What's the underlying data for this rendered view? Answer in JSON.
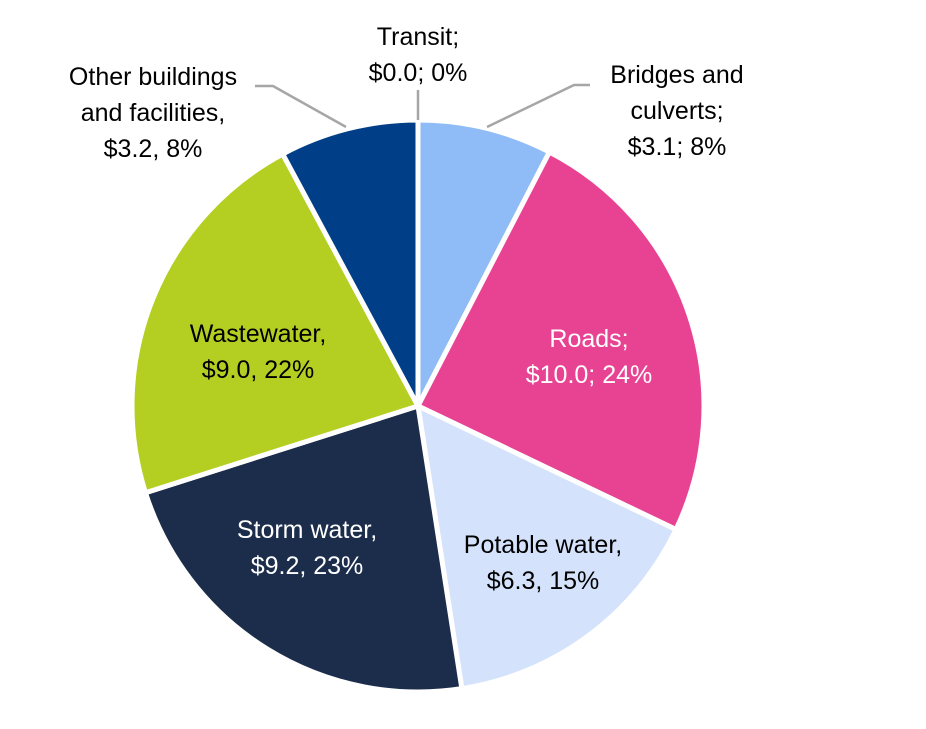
{
  "chart_data": {
    "type": "pie",
    "title": "",
    "unit_prefix": "$",
    "slices": [
      {
        "category": "Transit",
        "value": 0.0,
        "percent": 0,
        "color": "#2a9fd6",
        "label_lines": [
          "Transit;",
          "$0.0; 0%"
        ],
        "label_color": "#000000"
      },
      {
        "category": "Bridges and culverts",
        "value": 3.1,
        "percent": 8,
        "color": "#8fbcf6",
        "label_lines": [
          "Bridges and",
          "culverts;",
          "$3.1; 8%"
        ],
        "label_color": "#000000"
      },
      {
        "category": "Roads",
        "value": 10.0,
        "percent": 24,
        "color": "#e84393",
        "label_lines": [
          "Roads;",
          "$10.0; 24%"
        ],
        "label_color": "#ffffff"
      },
      {
        "category": "Potable water",
        "value": 6.3,
        "percent": 15,
        "color": "#d4e3fb",
        "label_lines": [
          "Potable water,",
          "$6.3, 15%"
        ],
        "label_color": "#000000"
      },
      {
        "category": "Storm water",
        "value": 9.2,
        "percent": 23,
        "color": "#1c2d4c",
        "label_lines": [
          "Storm water,",
          "$9.2, 23%"
        ],
        "label_color": "#ffffff"
      },
      {
        "category": "Wastewater",
        "value": 9.0,
        "percent": 22,
        "color": "#b4cf22",
        "label_lines": [
          "Wastewater,",
          "$9.0, 22%"
        ],
        "label_color": "#000000"
      },
      {
        "category": "Other buildings and facilities",
        "value": 3.2,
        "percent": 8,
        "color": "#003f87",
        "label_lines": [
          "Other buildings",
          "and facilities,",
          "$3.2, 8%"
        ],
        "label_color": "#000000"
      }
    ],
    "legend": "none",
    "leader_line_color": "#a6a6a6"
  }
}
